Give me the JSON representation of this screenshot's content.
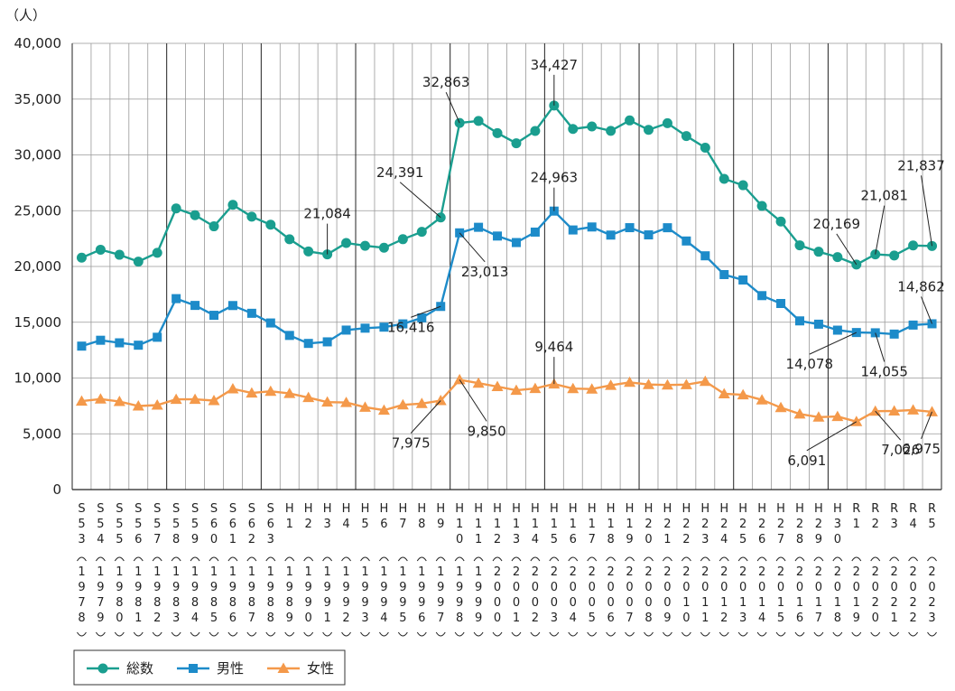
{
  "chart_data": {
    "type": "line",
    "y_unit": "（人）",
    "ylim": [
      0,
      40000
    ],
    "yticks": [
      "0",
      "5,000",
      "10,000",
      "15,000",
      "20,000",
      "25,000",
      "30,000",
      "35,000",
      "40,000"
    ],
    "grid": true,
    "legend_position": "bottom-left",
    "categories": [
      {
        "era": "S53",
        "year": "1978"
      },
      {
        "era": "S54",
        "year": "1979"
      },
      {
        "era": "S55",
        "year": "1980"
      },
      {
        "era": "S56",
        "year": "1981"
      },
      {
        "era": "S57",
        "year": "1982"
      },
      {
        "era": "S58",
        "year": "1983"
      },
      {
        "era": "S59",
        "year": "1984"
      },
      {
        "era": "S60",
        "year": "1985"
      },
      {
        "era": "S61",
        "year": "1986"
      },
      {
        "era": "S62",
        "year": "1987"
      },
      {
        "era": "S63",
        "year": "1988"
      },
      {
        "era": "H1",
        "year": "1989"
      },
      {
        "era": "H2",
        "year": "1990"
      },
      {
        "era": "H3",
        "year": "1991"
      },
      {
        "era": "H4",
        "year": "1992"
      },
      {
        "era": "H5",
        "year": "1993"
      },
      {
        "era": "H6",
        "year": "1994"
      },
      {
        "era": "H7",
        "year": "1995"
      },
      {
        "era": "H8",
        "year": "1996"
      },
      {
        "era": "H9",
        "year": "1997"
      },
      {
        "era": "H10",
        "year": "1998"
      },
      {
        "era": "H11",
        "year": "1999"
      },
      {
        "era": "H12",
        "year": "2000"
      },
      {
        "era": "H13",
        "year": "2001"
      },
      {
        "era": "H14",
        "year": "2002"
      },
      {
        "era": "H15",
        "year": "2003"
      },
      {
        "era": "H16",
        "year": "2004"
      },
      {
        "era": "H17",
        "year": "2005"
      },
      {
        "era": "H18",
        "year": "2006"
      },
      {
        "era": "H19",
        "year": "2007"
      },
      {
        "era": "H20",
        "year": "2008"
      },
      {
        "era": "H21",
        "year": "2009"
      },
      {
        "era": "H22",
        "year": "2010"
      },
      {
        "era": "H23",
        "year": "2011"
      },
      {
        "era": "H24",
        "year": "2012"
      },
      {
        "era": "H25",
        "year": "2013"
      },
      {
        "era": "H26",
        "year": "2014"
      },
      {
        "era": "H27",
        "year": "2015"
      },
      {
        "era": "H28",
        "year": "2016"
      },
      {
        "era": "H29",
        "year": "2017"
      },
      {
        "era": "H30",
        "year": "2018"
      },
      {
        "era": "R1",
        "year": "2019"
      },
      {
        "era": "R2",
        "year": "2020"
      },
      {
        "era": "R3",
        "year": "2021"
      },
      {
        "era": "R4",
        "year": "2022"
      },
      {
        "era": "R5",
        "year": "2023"
      }
    ],
    "era_boundaries": [
      "S58",
      "S63",
      "H5",
      "H10",
      "H15",
      "H20",
      "H25",
      "H30"
    ],
    "series": [
      {
        "name": "総数",
        "color": "#1a9e8f",
        "marker": "circle",
        "values": [
          20788,
          21503,
          21048,
          20434,
          21228,
          25202,
          24596,
          23599,
          25524,
          24460,
          23742,
          22436,
          21346,
          21084,
          22104,
          21851,
          21679,
          22445,
          23104,
          24391,
          32863,
          33048,
          31957,
          31042,
          32143,
          34427,
          32325,
          32552,
          32155,
          33093,
          32249,
          32845,
          31690,
          30651,
          27858,
          27283,
          25427,
          24025,
          21897,
          21321,
          20840,
          20169,
          21081,
          20985,
          21881,
          21837
        ]
      },
      {
        "name": "男性",
        "color": "#1d8bc9",
        "marker": "square",
        "values": [
          12859,
          13386,
          13155,
          12942,
          13654,
          17116,
          16508,
          15624,
          16497,
          15802,
          14934,
          13818,
          13102,
          13242,
          14296,
          14468,
          14560,
          14853,
          15393,
          16416,
          23013,
          23512,
          22727,
          22144,
          23080,
          24963,
          23272,
          23540,
          22813,
          23478,
          22831,
          23472,
          22283,
          20955,
          19273,
          18787,
          17386,
          16681,
          15121,
          14826,
          14290,
          14078,
          14055,
          13939,
          14746,
          14862
        ]
      },
      {
        "name": "女性",
        "color": "#f4994a",
        "marker": "triangle",
        "values": [
          7929,
          8117,
          7893,
          7492,
          7574,
          8086,
          8088,
          7975,
          9027,
          8658,
          8808,
          8618,
          8244,
          7842,
          7808,
          7383,
          7119,
          7592,
          7711,
          7975,
          9850,
          9536,
          9230,
          8898,
          9063,
          9464,
          9053,
          9012,
          9342,
          9615,
          9418,
          9373,
          9407,
          9696,
          8585,
          8496,
          8041,
          7344,
          6776,
          6495,
          6550,
          6091,
          7026,
          7046,
          7135,
          6975
        ]
      }
    ],
    "annotations": [
      {
        "series": 0,
        "category": "H3",
        "text": "21,084"
      },
      {
        "series": 0,
        "category": "H9",
        "text": "24,391"
      },
      {
        "series": 0,
        "category": "H10",
        "text": "32,863"
      },
      {
        "series": 0,
        "category": "H15",
        "text": "34,427"
      },
      {
        "series": 0,
        "category": "R1",
        "text": "20,169"
      },
      {
        "series": 0,
        "category": "R2",
        "text": "21,081"
      },
      {
        "series": 0,
        "category": "R5",
        "text": "21,837"
      },
      {
        "series": 1,
        "category": "H9",
        "text": "16,416"
      },
      {
        "series": 1,
        "category": "H10",
        "text": "23,013"
      },
      {
        "series": 1,
        "category": "H15",
        "text": "24,963"
      },
      {
        "series": 1,
        "category": "R1",
        "text": "14,078"
      },
      {
        "series": 1,
        "category": "R2",
        "text": "14,055"
      },
      {
        "series": 1,
        "category": "R5",
        "text": "14,862"
      },
      {
        "series": 2,
        "category": "H9",
        "text": "7,975"
      },
      {
        "series": 2,
        "category": "H10",
        "text": "9,850"
      },
      {
        "series": 2,
        "category": "H15",
        "text": "9,464"
      },
      {
        "series": 2,
        "category": "R1",
        "text": "6,091"
      },
      {
        "series": 2,
        "category": "R2",
        "text": "7,026"
      },
      {
        "series": 2,
        "category": "R5",
        "text": "6,975"
      }
    ]
  }
}
